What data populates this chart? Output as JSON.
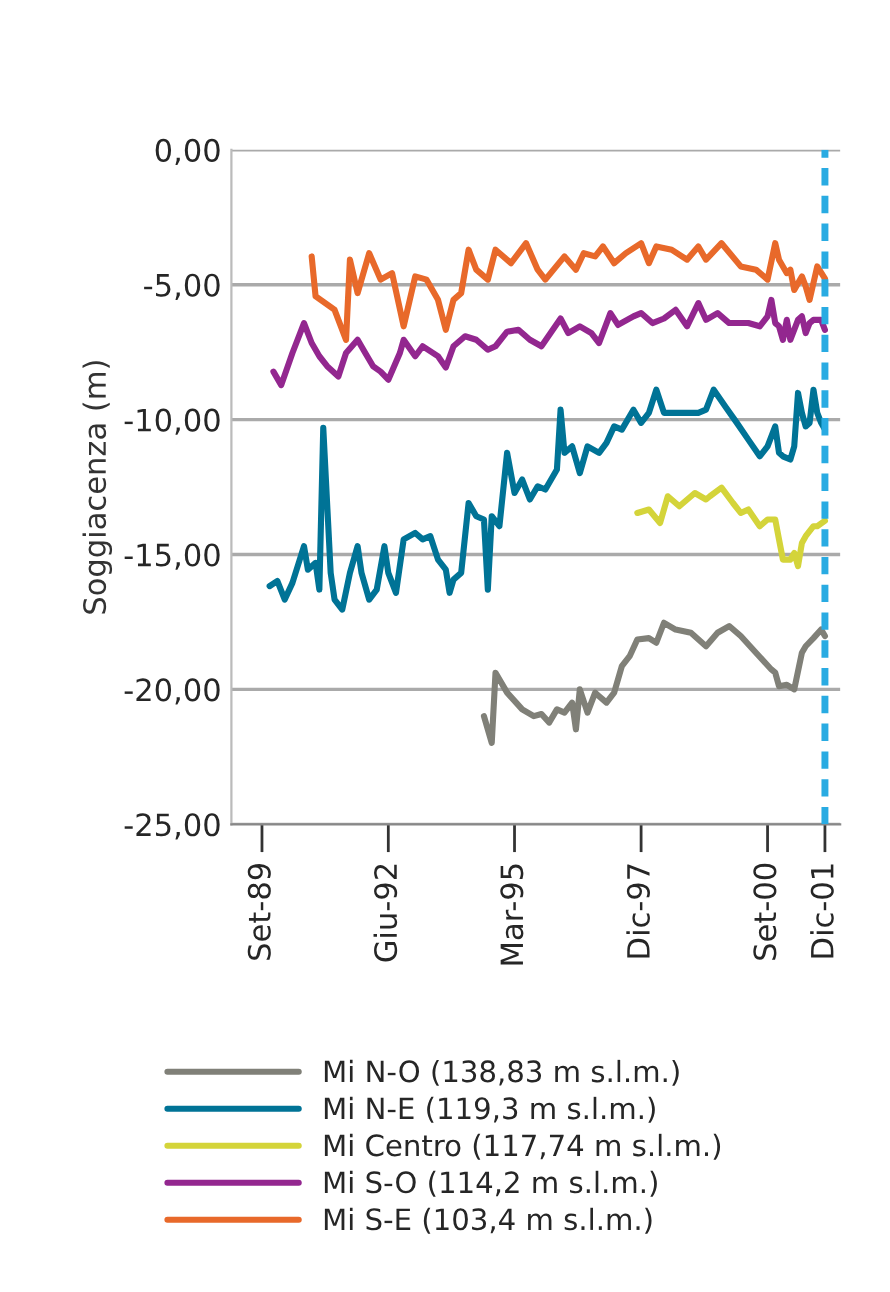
{
  "chart_data": {
    "type": "line",
    "ylabel": "Soggiacenza (m)",
    "xlim": [
      "1989-01",
      "2002-04"
    ],
    "ylim": [
      -25,
      0
    ],
    "xticks": [
      {
        "value": "1989-09",
        "label": "Set-89"
      },
      {
        "value": "1992-06",
        "label": "Giu-92"
      },
      {
        "value": "1995-03",
        "label": "Mar-95"
      },
      {
        "value": "1997-12",
        "label": "Dic-97"
      },
      {
        "value": "2000-09",
        "label": "Set-00"
      },
      {
        "value": "2001-12",
        "label": "Dic-01"
      }
    ],
    "yticks": [
      {
        "value": 0,
        "label": "0,00"
      },
      {
        "value": -5,
        "label": "-5,00"
      },
      {
        "value": -10,
        "label": "-10,00"
      },
      {
        "value": -15,
        "label": "-15,00"
      },
      {
        "value": -20,
        "label": "-20,00"
      },
      {
        "value": -25,
        "label": "-25,00"
      }
    ],
    "grid": "y",
    "legend": "bottom",
    "line_style": "solid",
    "ref_lines": [
      {
        "axis": "x",
        "value": "2001-12",
        "color": "#29abe2",
        "line_style": "dashed"
      }
    ],
    "series": [
      {
        "name": "Mi N-O (138,83 m s.l.m.)",
        "color": "#808078",
        "x": [
          "1994-07",
          "1994-09",
          "1994-10",
          "1995-01",
          "1995-05",
          "1995-08",
          "1995-10",
          "1995-12",
          "1996-02",
          "1996-04",
          "1996-06",
          "1996-07",
          "1996-08",
          "1996-10",
          "1996-12",
          "1997-01",
          "1997-03",
          "1997-05",
          "1997-07",
          "1997-09",
          "1997-11",
          "1998-02",
          "1998-04",
          "1998-06",
          "1998-09",
          "1999-01",
          "1999-05",
          "1999-08",
          "1999-11",
          "2000-02",
          "2000-06",
          "2000-10",
          "2000-11",
          "2000-12",
          "2001-02",
          "2001-04",
          "2001-06",
          "2001-07",
          "2001-09",
          "2001-11",
          "2001-12"
        ],
        "values": [
          -20.99,
          -21.98,
          -19.38,
          -20.12,
          -20.74,
          -20.99,
          -20.91,
          -21.23,
          -20.74,
          -20.86,
          -20.49,
          -21.48,
          -20.0,
          -20.86,
          -20.12,
          -20.25,
          -20.49,
          -20.12,
          -19.14,
          -18.77,
          -18.15,
          -18.1,
          -18.27,
          -17.53,
          -17.78,
          -17.9,
          -18.4,
          -17.9,
          -17.65,
          -18.02,
          -18.64,
          -19.26,
          -19.38,
          -19.88,
          -19.83,
          -20.0,
          -18.64,
          -18.4,
          -18.1,
          -17.78,
          -18.02
        ]
      },
      {
        "name": "Mi N-E (119,3 m s.l.m.)",
        "color": "#007396",
        "x": [
          "1989-11",
          "1990-01",
          "1990-03",
          "1990-05",
          "1990-08",
          "1990-09",
          "1990-11",
          "1990-12",
          "1991-01",
          "1991-03",
          "1991-04",
          "1991-06",
          "1991-08",
          "1991-10",
          "1991-11",
          "1992-01",
          "1992-03",
          "1992-05",
          "1992-06",
          "1992-08",
          "1992-10",
          "1993-01",
          "1993-03",
          "1993-05",
          "1993-07",
          "1993-09",
          "1993-10",
          "1993-11",
          "1994-01",
          "1994-03",
          "1994-05",
          "1994-07",
          "1994-08",
          "1994-09",
          "1994-11",
          "1995-01",
          "1995-03",
          "1995-05",
          "1995-07",
          "1995-09",
          "1995-11",
          "1996-02",
          "1996-03",
          "1996-04",
          "1996-06",
          "1996-08",
          "1996-10",
          "1997-01",
          "1997-03",
          "1997-05",
          "1997-07",
          "1997-10",
          "1997-12",
          "1998-02",
          "1998-04",
          "1998-06",
          "1998-11",
          "1999-03",
          "1999-05",
          "1999-07",
          "1999-10",
          "2000-01",
          "2000-04",
          "2000-07",
          "2000-09",
          "2000-11",
          "2000-12",
          "2001-01",
          "2001-03",
          "2001-04",
          "2001-05",
          "2001-06",
          "2001-07",
          "2001-08",
          "2001-09",
          "2001-10",
          "2001-11",
          "2001-12"
        ],
        "values": [
          -16.17,
          -15.98,
          -16.67,
          -16.05,
          -14.69,
          -15.56,
          -15.31,
          -16.3,
          -10.3,
          -15.68,
          -16.67,
          -17.04,
          -15.68,
          -14.69,
          -15.68,
          -16.67,
          -16.3,
          -14.69,
          -15.68,
          -16.42,
          -14.44,
          -14.2,
          -14.44,
          -14.32,
          -15.19,
          -15.56,
          -16.42,
          -15.93,
          -15.68,
          -13.09,
          -13.58,
          -13.7,
          -16.3,
          -13.58,
          -13.95,
          -11.23,
          -12.72,
          -12.22,
          -12.96,
          -12.47,
          -12.59,
          -11.85,
          -9.63,
          -11.23,
          -10.99,
          -11.98,
          -10.99,
          -11.23,
          -10.86,
          -10.25,
          -10.37,
          -9.63,
          -10.12,
          -9.75,
          -8.89,
          -9.75,
          -9.75,
          -9.75,
          -9.63,
          -8.89,
          -9.51,
          -10.12,
          -10.74,
          -11.36,
          -10.99,
          -10.25,
          -11.23,
          -11.36,
          -11.48,
          -10.99,
          -9.01,
          -9.75,
          -10.25,
          -10.12,
          -8.89,
          -9.75,
          -10.12,
          -10.37
        ]
      },
      {
        "name": "Mi Centro (117,74 m s.l.m.)",
        "color": "#d4d43a",
        "x": [
          "1997-11",
          "1998-02",
          "1998-05",
          "1998-07",
          "1998-10",
          "1999-02",
          "1999-05",
          "1999-06",
          "1999-09",
          "1999-12",
          "2000-02",
          "2000-04",
          "2000-07",
          "2000-09",
          "2000-11",
          "2000-12",
          "2001-01",
          "2001-03",
          "2001-04",
          "2001-05",
          "2001-06",
          "2001-07",
          "2001-09",
          "2001-10",
          "2001-12"
        ],
        "values": [
          -13.46,
          -13.33,
          -13.83,
          -12.84,
          -13.21,
          -12.72,
          -12.96,
          -12.84,
          -12.52,
          -13.09,
          -13.46,
          -13.33,
          -13.95,
          -13.7,
          -13.7,
          -14.44,
          -15.19,
          -15.19,
          -14.94,
          -15.43,
          -14.57,
          -14.32,
          -13.95,
          -13.95,
          -13.75
        ]
      },
      {
        "name": "Mi S-O (114,2 m s.l.m.)",
        "color": "#93278f",
        "x": [
          "1989-12",
          "1990-02",
          "1990-05",
          "1990-08",
          "1990-10",
          "1990-12",
          "1991-02",
          "1991-05",
          "1991-07",
          "1991-10",
          "1991-12",
          "1992-02",
          "1992-04",
          "1992-06",
          "1992-09",
          "1992-10",
          "1993-01",
          "1993-03",
          "1993-07",
          "1993-09",
          "1993-11",
          "1994-02",
          "1994-05",
          "1994-08",
          "1994-10",
          "1995-01",
          "1995-04",
          "1995-07",
          "1995-10",
          "1996-03",
          "1996-05",
          "1996-08",
          "1996-11",
          "1997-01",
          "1997-04",
          "1997-06",
          "1997-10",
          "1997-12",
          "1998-03",
          "1998-06",
          "1998-09",
          "1998-12",
          "1999-03",
          "1999-05",
          "1999-08",
          "1999-11",
          "2000-04",
          "2000-07",
          "2000-09",
          "2000-10",
          "2000-11",
          "2000-12",
          "2001-01",
          "2001-02",
          "2001-03",
          "2001-05",
          "2001-06",
          "2001-07",
          "2001-08",
          "2001-09",
          "2001-11",
          "2001-12"
        ],
        "values": [
          -8.22,
          -8.72,
          -7.53,
          -6.42,
          -7.16,
          -7.65,
          -8.02,
          -8.4,
          -7.53,
          -7.04,
          -7.53,
          -8.02,
          -8.22,
          -8.52,
          -7.53,
          -7.04,
          -7.65,
          -7.28,
          -7.65,
          -8.07,
          -7.28,
          -6.91,
          -7.04,
          -7.41,
          -7.28,
          -6.74,
          -6.67,
          -7.04,
          -7.28,
          -6.25,
          -6.79,
          -6.54,
          -6.79,
          -7.16,
          -6.05,
          -6.49,
          -6.17,
          -6.05,
          -6.42,
          -6.25,
          -5.93,
          -6.54,
          -5.68,
          -6.3,
          -6.05,
          -6.42,
          -6.42,
          -6.54,
          -6.17,
          -5.56,
          -6.42,
          -6.54,
          -7.04,
          -6.3,
          -7.04,
          -6.3,
          -6.17,
          -6.79,
          -6.42,
          -6.3,
          -6.3,
          -6.67
        ]
      },
      {
        "name": "Mi S-E (103,4 m s.l.m.)",
        "color": "#e8692a",
        "x": [
          "1990-10",
          "1990-11",
          "1991-04",
          "1991-07",
          "1991-08",
          "1991-10",
          "1992-01",
          "1992-04",
          "1992-07",
          "1992-10",
          "1993-01",
          "1993-04",
          "1993-07",
          "1993-09",
          "1993-11",
          "1994-01",
          "1994-03",
          "1994-05",
          "1994-08",
          "1994-10",
          "1995-02",
          "1995-06",
          "1995-09",
          "1995-11",
          "1996-04",
          "1996-07",
          "1996-09",
          "1996-12",
          "1997-02",
          "1997-05",
          "1997-08",
          "1997-12",
          "1998-02",
          "1998-04",
          "1998-08",
          "1998-12",
          "1999-03",
          "1999-05",
          "1999-09",
          "2000-02",
          "2000-06",
          "2000-09",
          "2000-11",
          "2000-12",
          "2001-02",
          "2001-03",
          "2001-04",
          "2001-06",
          "2001-07",
          "2001-08",
          "2001-10",
          "2001-12"
        ],
        "values": [
          -3.95,
          -5.43,
          -5.93,
          -7.04,
          -4.07,
          -5.31,
          -3.83,
          -4.81,
          -4.57,
          -6.54,
          -4.69,
          -4.81,
          -5.56,
          -6.67,
          -5.56,
          -5.31,
          -3.7,
          -4.44,
          -4.81,
          -3.7,
          -4.2,
          -3.46,
          -4.44,
          -4.81,
          -3.95,
          -4.44,
          -3.83,
          -3.95,
          -3.58,
          -4.2,
          -3.83,
          -3.46,
          -4.2,
          -3.58,
          -3.7,
          -4.07,
          -3.58,
          -4.07,
          -3.46,
          -4.32,
          -4.44,
          -4.81,
          -3.46,
          -4.07,
          -4.57,
          -4.44,
          -5.19,
          -4.69,
          -5.06,
          -5.56,
          -4.32,
          -4.77
        ]
      }
    ]
  }
}
